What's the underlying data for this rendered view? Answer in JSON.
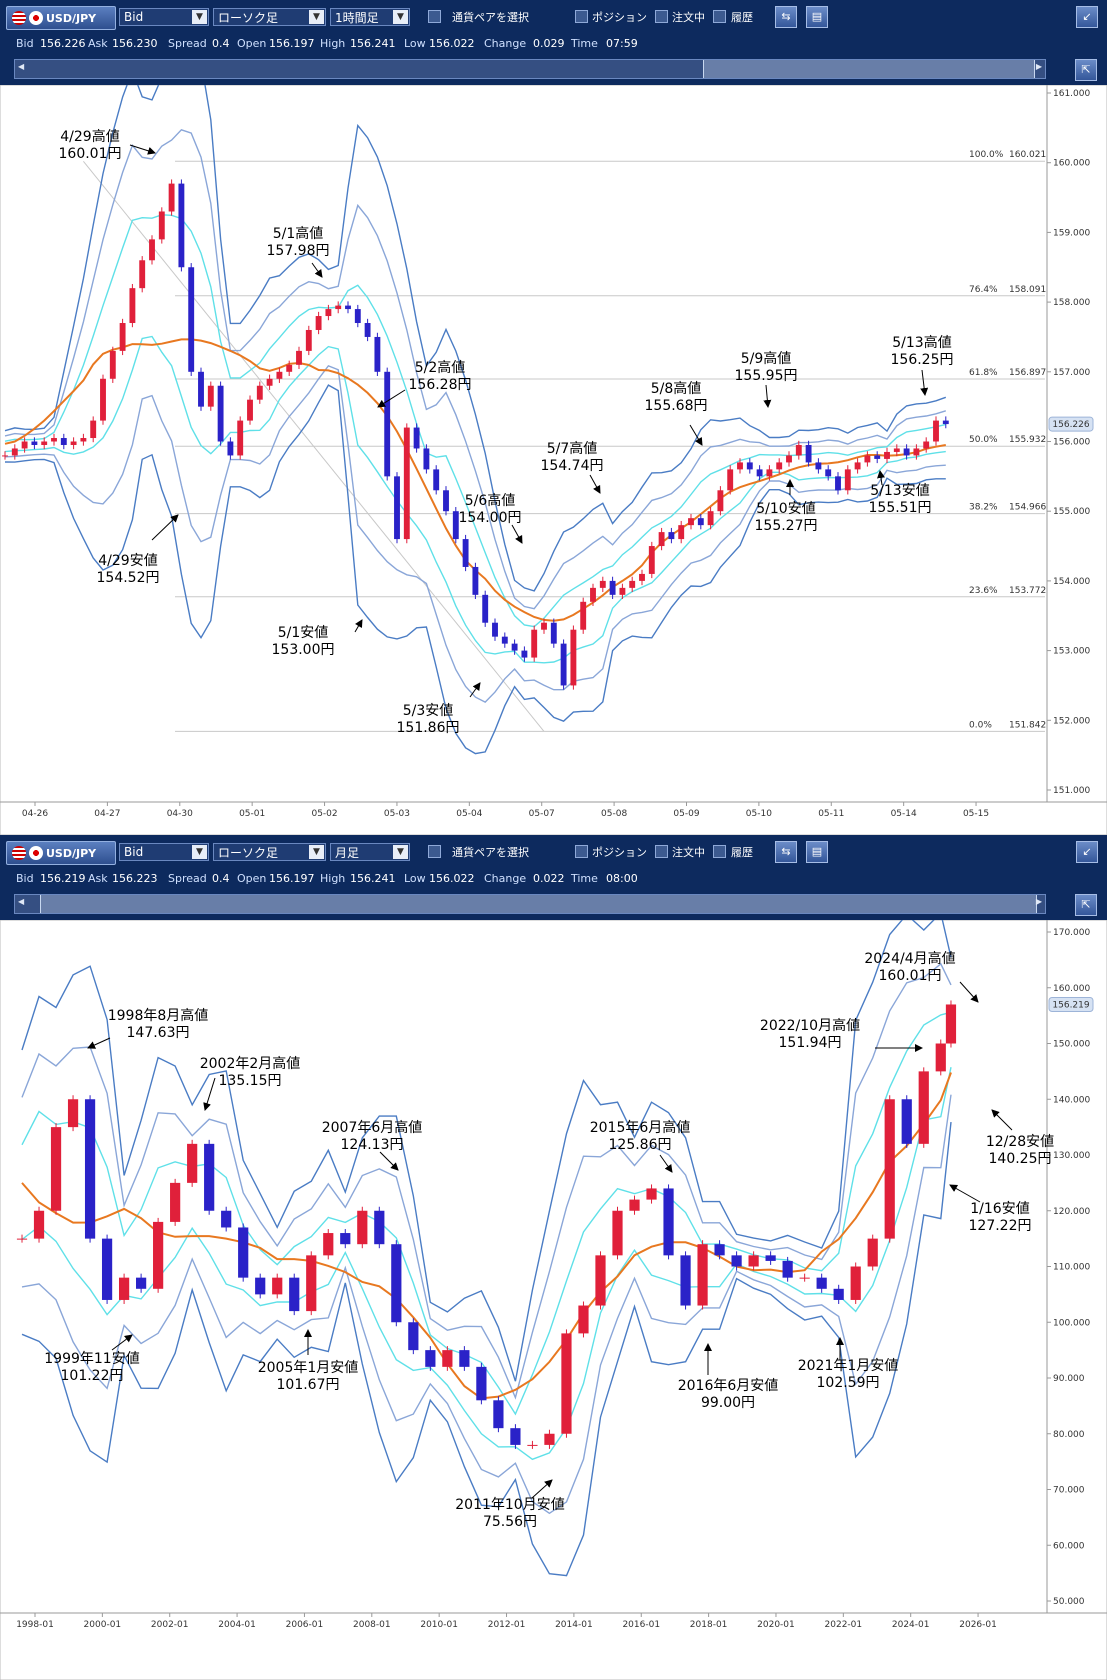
{
  "panels": [
    {
      "toolbar": {
        "pair": "USD/JPY",
        "price_type": "Bid",
        "chart_type": "ローソク足",
        "timeframe": "1時間足",
        "select_pair_label": "通貨ペアを選択",
        "position_label": "ポジション",
        "orders_label": "注文中",
        "history_label": "履歴"
      },
      "info": {
        "bid_label": "Bid",
        "bid": "156.226",
        "ask_label": "Ask",
        "ask": "156.230",
        "spread_label": "Spread",
        "spread": "0.4",
        "open_label": "Open",
        "open": "156.197",
        "high_label": "High",
        "high": "156.241",
        "low_label": "Low",
        "low": "156.022",
        "change_label": "Change",
        "change": "0.029",
        "time_label": "Time",
        "time": "07:59"
      }
    },
    {
      "toolbar": {
        "pair": "USD/JPY",
        "price_type": "Bid",
        "chart_type": "ローソク足",
        "timeframe": "月足",
        "select_pair_label": "通貨ペアを選択",
        "position_label": "ポジション",
        "orders_label": "注文中",
        "history_label": "履歴"
      },
      "info": {
        "bid_label": "Bid",
        "bid": "156.219",
        "ask_label": "Ask",
        "ask": "156.223",
        "spread_label": "Spread",
        "spread": "0.4",
        "open_label": "Open",
        "open": "156.197",
        "high_label": "High",
        "high": "156.241",
        "low_label": "Low",
        "low": "156.022",
        "change_label": "Change",
        "change": "0.022",
        "time_label": "Time",
        "time": "08:00"
      }
    }
  ],
  "colors": {
    "candle_up": "#e0203a",
    "candle_down": "#2a22c8",
    "bb_outer": "#4a7cc4",
    "bb_mid": "#8aa6d8",
    "bb_inner": "#5fe0e8",
    "ma": "#e87820",
    "fib_line": "#c8c8c8",
    "fib_diag": "#c8c8c8"
  },
  "chart_data": [
    {
      "type": "candlestick",
      "ylim": [
        151.0,
        161.0
      ],
      "yticks": [
        "161.000",
        "160.000",
        "159.000",
        "158.000",
        "157.000",
        "156.000",
        "155.000",
        "154.000",
        "153.000",
        "152.000",
        "151.000"
      ],
      "xticks": [
        "04-26",
        "04-27",
        "04-30",
        "05-01",
        "05-02",
        "05-03",
        "05-04",
        "05-07",
        "05-08",
        "05-09",
        "05-10",
        "05-11",
        "05-14",
        "05-15"
      ],
      "current_price_label": "156.226",
      "fibonacci": [
        {
          "level": "100.0%",
          "price": "160.021"
        },
        {
          "level": "76.4%",
          "price": "158.091"
        },
        {
          "level": "61.8%",
          "price": "156.897"
        },
        {
          "level": "50.0%",
          "price": "155.932"
        },
        {
          "level": "38.2%",
          "price": "154.966"
        },
        {
          "level": "23.6%",
          "price": "153.772"
        },
        {
          "level": "0.0%",
          "price": "151.842"
        }
      ],
      "series_x": [
        0,
        3,
        6,
        9,
        12,
        15,
        18,
        21,
        24,
        27,
        30,
        33,
        36,
        39,
        42,
        45,
        48,
        51,
        54,
        57,
        60,
        63,
        66,
        69,
        72,
        75,
        78,
        81,
        84,
        87,
        90,
        93,
        96,
        99,
        102,
        105,
        108,
        111,
        114,
        117,
        120,
        123,
        126,
        129,
        132,
        135,
        138,
        141,
        144,
        147,
        150,
        153,
        156,
        159,
        162,
        165,
        168,
        171,
        174,
        177,
        180,
        183,
        186,
        189,
        192,
        195,
        198,
        201,
        204,
        207,
        210,
        213,
        216,
        219,
        222,
        225,
        228,
        231,
        234,
        237,
        240,
        243,
        246,
        249,
        252,
        255,
        258,
        261,
        264,
        267,
        270,
        273,
        276,
        279,
        282,
        285,
        288
      ],
      "close": [
        155.8,
        155.9,
        156.0,
        155.95,
        156.0,
        156.05,
        155.95,
        156.0,
        156.05,
        156.3,
        156.9,
        157.3,
        157.7,
        158.2,
        158.6,
        158.9,
        159.3,
        159.7,
        158.5,
        157.0,
        156.5,
        156.8,
        156.0,
        155.8,
        156.3,
        156.6,
        156.8,
        156.9,
        157.0,
        157.1,
        157.3,
        157.6,
        157.8,
        157.9,
        157.95,
        157.9,
        157.7,
        157.5,
        157.0,
        155.5,
        154.6,
        156.2,
        155.9,
        155.6,
        155.3,
        155.0,
        154.6,
        154.2,
        153.8,
        153.4,
        153.2,
        153.1,
        153.0,
        152.9,
        153.3,
        153.4,
        153.1,
        152.5,
        153.3,
        153.7,
        153.9,
        154.0,
        153.8,
        153.9,
        154.0,
        154.1,
        154.5,
        154.7,
        154.6,
        154.8,
        154.9,
        154.8,
        155.0,
        155.3,
        155.6,
        155.7,
        155.6,
        155.5,
        155.6,
        155.7,
        155.8,
        155.95,
        155.7,
        155.6,
        155.5,
        155.3,
        155.6,
        155.7,
        155.8,
        155.75,
        155.85,
        155.9,
        155.8,
        155.9,
        156.0,
        156.3,
        156.25
      ],
      "annotations": [
        {
          "text": [
            "4/29高値",
            "160.01円"
          ]
        },
        {
          "text": [
            "4/29安値",
            "154.52円"
          ]
        },
        {
          "text": [
            "5/1高値",
            "157.98円"
          ]
        },
        {
          "text": [
            "5/1安値",
            "153.00円"
          ]
        },
        {
          "text": [
            "5/2高値",
            "156.28円"
          ]
        },
        {
          "text": [
            "5/3安値",
            "151.86円"
          ]
        },
        {
          "text": [
            "5/6高値",
            "154.00円"
          ]
        },
        {
          "text": [
            "5/7高値",
            "154.74円"
          ]
        },
        {
          "text": [
            "5/8高値",
            "155.68円"
          ]
        },
        {
          "text": [
            "5/9高値",
            "155.95円"
          ]
        },
        {
          "text": [
            "5/10安値",
            "155.27円"
          ]
        },
        {
          "text": [
            "5/13高値",
            "156.25円"
          ]
        },
        {
          "text": [
            "5/13安値",
            "155.51円"
          ]
        }
      ]
    },
    {
      "type": "candlestick",
      "ylim": [
        50.0,
        170.0
      ],
      "yticks": [
        "170.000",
        "160.000",
        "150.000",
        "140.000",
        "130.000",
        "120.000",
        "110.000",
        "100.000",
        "90.000",
        "80.000",
        "70.000",
        "60.000",
        "50.000"
      ],
      "xticks": [
        "1998-01",
        "2000-01",
        "2002-01",
        "2004-01",
        "2006-01",
        "2008-01",
        "2010-01",
        "2012-01",
        "2014-01",
        "2016-01",
        "2018-01",
        "2020-01",
        "2022-01",
        "2024-01",
        "2026-01"
      ],
      "current_price_label": "156.219",
      "series_x": [
        1997,
        1997.5,
        1998,
        1998.5,
        1999,
        1999.5,
        2000,
        2000.5,
        2001,
        2001.5,
        2002,
        2002.5,
        2003,
        2003.5,
        2004,
        2004.5,
        2005,
        2005.5,
        2006,
        2006.5,
        2007,
        2007.5,
        2008,
        2008.5,
        2009,
        2009.5,
        2010,
        2010.5,
        2011,
        2011.5,
        2012,
        2012.5,
        2013,
        2013.5,
        2014,
        2014.5,
        2015,
        2015.5,
        2016,
        2016.5,
        2017,
        2017.5,
        2018,
        2018.5,
        2019,
        2019.5,
        2020,
        2020.5,
        2021,
        2021.5,
        2022,
        2022.5,
        2023,
        2023.5,
        2024,
        2024.3
      ],
      "close": [
        115,
        120,
        135,
        140,
        115,
        104,
        108,
        106,
        118,
        125,
        132,
        120,
        117,
        108,
        105,
        108,
        102,
        112,
        116,
        114,
        120,
        114,
        100,
        95,
        92,
        95,
        92,
        86,
        81,
        78,
        78,
        80,
        98,
        103,
        112,
        120,
        122,
        124,
        112,
        103,
        114,
        112,
        110,
        112,
        111,
        108,
        108,
        106,
        104,
        110,
        115,
        140,
        132,
        145,
        150,
        157
      ],
      "annotations": [
        {
          "text": [
            "1998年8月高値",
            "147.63円"
          ]
        },
        {
          "text": [
            "1999年11安値",
            "101.22円"
          ]
        },
        {
          "text": [
            "2002年2月高値",
            "135.15円"
          ]
        },
        {
          "text": [
            "2005年1月安値",
            "101.67円"
          ]
        },
        {
          "text": [
            "2007年6月高値",
            "124.13円"
          ]
        },
        {
          "text": [
            "2011年10月安値",
            "75.56円"
          ]
        },
        {
          "text": [
            "2015年6月高値",
            "125.86円"
          ]
        },
        {
          "text": [
            "2016年6月安値",
            "99.00円"
          ]
        },
        {
          "text": [
            "2021年1月安値",
            "102.59円"
          ]
        },
        {
          "text": [
            "2022/10月高値",
            "151.94円"
          ]
        },
        {
          "text": [
            "2024/4月高値",
            "160.01円"
          ]
        },
        {
          "text": [
            "12/28安値",
            "140.25円"
          ]
        },
        {
          "text": [
            "1/16安値",
            "127.22円"
          ]
        }
      ]
    }
  ]
}
